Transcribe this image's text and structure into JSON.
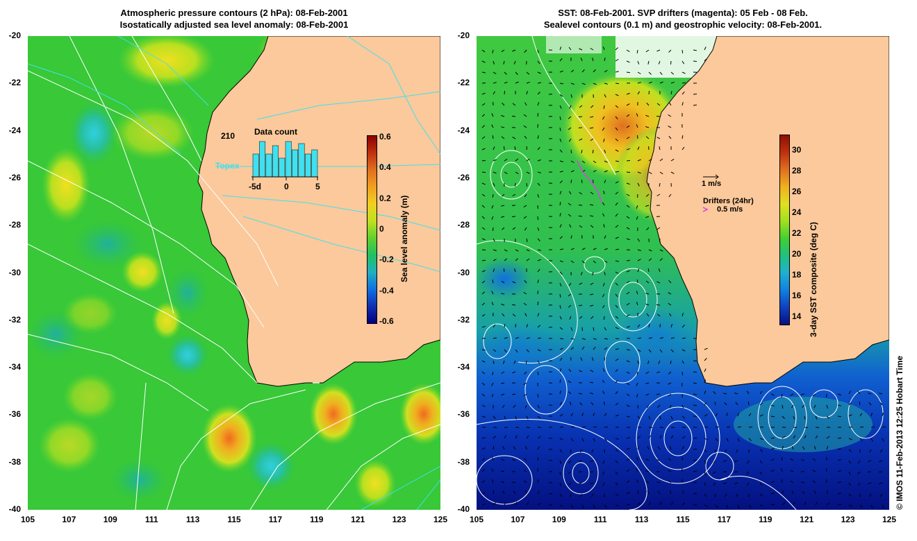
{
  "left_panel": {
    "title_line1": "Atmospheric pressure contours (2 hPa): 08-Feb-2001",
    "title_line2": "Isostatically adjusted sea level anomaly: 08-Feb-2001",
    "colorbar_label": "Sea level anomaly (m)",
    "colorbar_ticks": [
      "0.6",
      "0.4",
      "0.2",
      "0",
      "-0.2",
      "-0.4",
      "-0.6"
    ],
    "inset": {
      "count_label": "210",
      "title": "Data count",
      "x_ticks": [
        "-5d",
        "0",
        "5"
      ],
      "bars": [
        0.55,
        0.85,
        0.55,
        0.75,
        0.45,
        0.85,
        0.65,
        0.8,
        0.55,
        0.65
      ]
    },
    "track_label": "Topex"
  },
  "right_panel": {
    "title_line1": "SST: 08-Feb-2001. SVP drifters (magenta): 05 Feb - 08 Feb.",
    "title_line2": "Sealevel contours (0.1 m) and geostrophic velocity: 08-Feb-2001.",
    "colorbar_label": "3-day SST composite (deg C)",
    "colorbar_ticks": [
      "30",
      "28",
      "26",
      "24",
      "22",
      "20",
      "18",
      "16",
      "14"
    ],
    "velocity_scale_label": "1 m/s",
    "drifters_label": "Drifters (24hr)",
    "drifters_scale_label": "0.5 m/s"
  },
  "axes": {
    "y_ticks": [
      "-20",
      "-22",
      "-24",
      "-26",
      "-28",
      "-30",
      "-32",
      "-34",
      "-36",
      "-38",
      "-40"
    ],
    "x_ticks": [
      "105",
      "107",
      "109",
      "111",
      "113",
      "115",
      "117",
      "119",
      "121",
      "123",
      "125"
    ]
  },
  "credit": "© IMOS 11-Feb-2013 12:25 Hobart Time",
  "colors": {
    "land": "#fbc99b",
    "ocean_green": "#2cd02a",
    "magenta": "#e040e0"
  }
}
